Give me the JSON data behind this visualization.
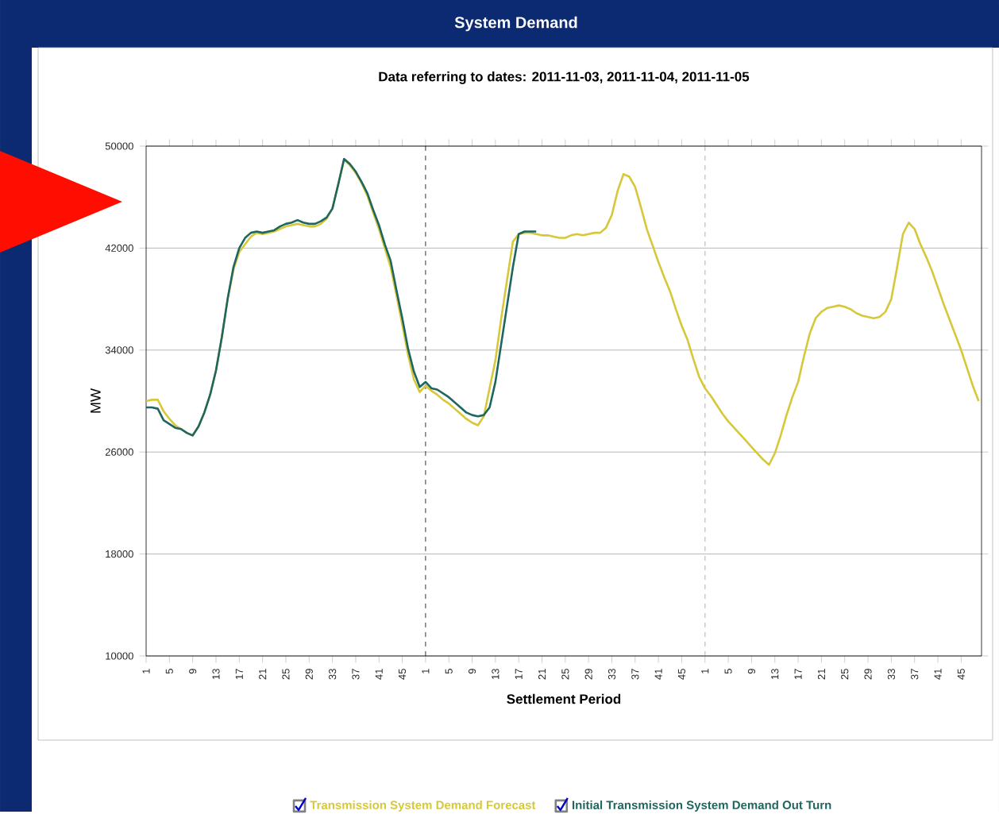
{
  "chart_data": {
    "type": "line",
    "title": "System Demand",
    "subtitle": "Data referring to dates: 2011-11-03, 2011-11-04, 2011-11-05",
    "xlabel": "Settlement Period",
    "ylabel": "MW",
    "categories": [
      "1",
      null,
      null,
      null,
      "5",
      null,
      null,
      null,
      "9",
      null,
      null,
      null,
      "13",
      null,
      null,
      null,
      "17",
      null,
      null,
      null,
      "21",
      null,
      null,
      null,
      "25",
      null,
      null,
      null,
      "29",
      null,
      null,
      null,
      "33",
      null,
      null,
      null,
      "37",
      null,
      null,
      null,
      "41",
      null,
      null,
      null,
      "45",
      null,
      null,
      null,
      "1",
      null,
      null,
      null,
      "5",
      null,
      null,
      null,
      "9",
      null,
      null,
      null,
      "13",
      null,
      null,
      null,
      "17",
      null,
      null,
      null,
      "21",
      null,
      null,
      null,
      "25",
      null,
      null,
      null,
      "29",
      null,
      null,
      null,
      "33",
      null,
      null,
      null,
      "37",
      null,
      null,
      null,
      "41",
      null,
      null,
      null,
      "45",
      null,
      null,
      null,
      "1",
      null,
      null,
      null,
      "5",
      null,
      null,
      null,
      "9",
      null,
      null,
      null,
      "13",
      null,
      null,
      null,
      "17",
      null,
      null,
      null,
      "21",
      null,
      null,
      null,
      "25",
      null,
      null,
      null,
      "29",
      null,
      null,
      null,
      "33",
      null,
      null,
      null,
      "37",
      null,
      null,
      null,
      "41",
      null,
      null,
      null,
      "45",
      null,
      null,
      null
    ],
    "series": [
      {
        "name": "Transmission System Demand Forecast",
        "color": "#d6c838",
        "values": [
          30000,
          30100,
          30100,
          29200,
          28600,
          28100,
          27800,
          27500,
          27300,
          28000,
          29100,
          30500,
          32400,
          35000,
          38000,
          40300,
          41700,
          42300,
          42900,
          43200,
          43100,
          43200,
          43300,
          43500,
          43700,
          43800,
          43900,
          43800,
          43700,
          43700,
          43900,
          44300,
          45100,
          47000,
          48900,
          48500,
          47900,
          47100,
          46100,
          44800,
          43500,
          42000,
          40500,
          38300,
          36000,
          33600,
          31700,
          30700,
          31200,
          30800,
          30500,
          30100,
          29800,
          29400,
          29000,
          28600,
          28300,
          28100,
          28800,
          31000,
          33200,
          36500,
          39500,
          42500,
          43100,
          43200,
          43200,
          43100,
          43000,
          43000,
          42900,
          42800,
          42800,
          43000,
          43100,
          43000,
          43100,
          43200,
          43200,
          43600,
          44600,
          46500,
          47800,
          47600,
          46800,
          45200,
          43500,
          42200,
          40900,
          39700,
          38600,
          37200,
          35900,
          34800,
          33300,
          31900,
          31000,
          30400,
          29700,
          29000,
          28400,
          27900,
          27400,
          26900,
          26400,
          25900,
          25400,
          25000,
          25900,
          27300,
          28900,
          30300,
          31500,
          33500,
          35300,
          36500,
          37000,
          37300,
          37400,
          37500,
          37400,
          37200,
          36900,
          36700,
          36600,
          36500,
          36600,
          37000,
          38000,
          40500,
          43100,
          44000,
          43500,
          42300,
          41300,
          40200,
          38900,
          37600,
          36400,
          35200,
          34000,
          32600,
          31200,
          30000
        ]
      },
      {
        "name": "Initial Transmission System Demand Out Turn",
        "color": "#1f6660",
        "values": [
          29500,
          29500,
          29400,
          28500,
          28200,
          27900,
          27800,
          27500,
          27300,
          28000,
          29100,
          30500,
          32400,
          35000,
          38000,
          40500,
          42000,
          42800,
          43200,
          43300,
          43200,
          43300,
          43400,
          43700,
          43900,
          44000,
          44200,
          44000,
          43900,
          43900,
          44100,
          44400,
          45100,
          47000,
          49000,
          48600,
          48000,
          47200,
          46300,
          45000,
          43800,
          42300,
          41000,
          38700,
          36500,
          34100,
          32300,
          31100,
          31500,
          31000,
          30900,
          30600,
          30300,
          29900,
          29500,
          29100,
          28900,
          28800,
          28900,
          29500,
          31500,
          34500,
          37500,
          40500,
          43100,
          43300,
          43300,
          43300,
          null,
          null,
          null,
          null,
          null,
          null,
          null,
          null,
          null,
          null,
          null,
          null,
          null,
          null,
          null,
          null,
          null,
          null,
          null,
          null,
          null,
          null,
          null,
          null,
          null,
          null,
          null,
          null,
          null,
          null,
          null,
          null,
          null,
          null,
          null,
          null,
          null,
          null,
          null,
          null,
          null,
          null,
          null,
          null,
          null,
          null,
          null,
          null,
          null,
          null,
          null,
          null,
          null,
          null,
          null,
          null,
          null,
          null,
          null,
          null,
          null,
          null,
          null,
          null,
          null,
          null,
          null,
          null,
          null,
          null,
          null,
          null,
          null,
          null,
          null,
          null
        ]
      }
    ],
    "ylim": [
      10000,
      50000
    ],
    "yticks": [
      10000,
      18000,
      26000,
      34000,
      42000,
      50000
    ],
    "grid": "y",
    "legend": "bottom",
    "marker": "none",
    "line_style": "solid"
  }
}
